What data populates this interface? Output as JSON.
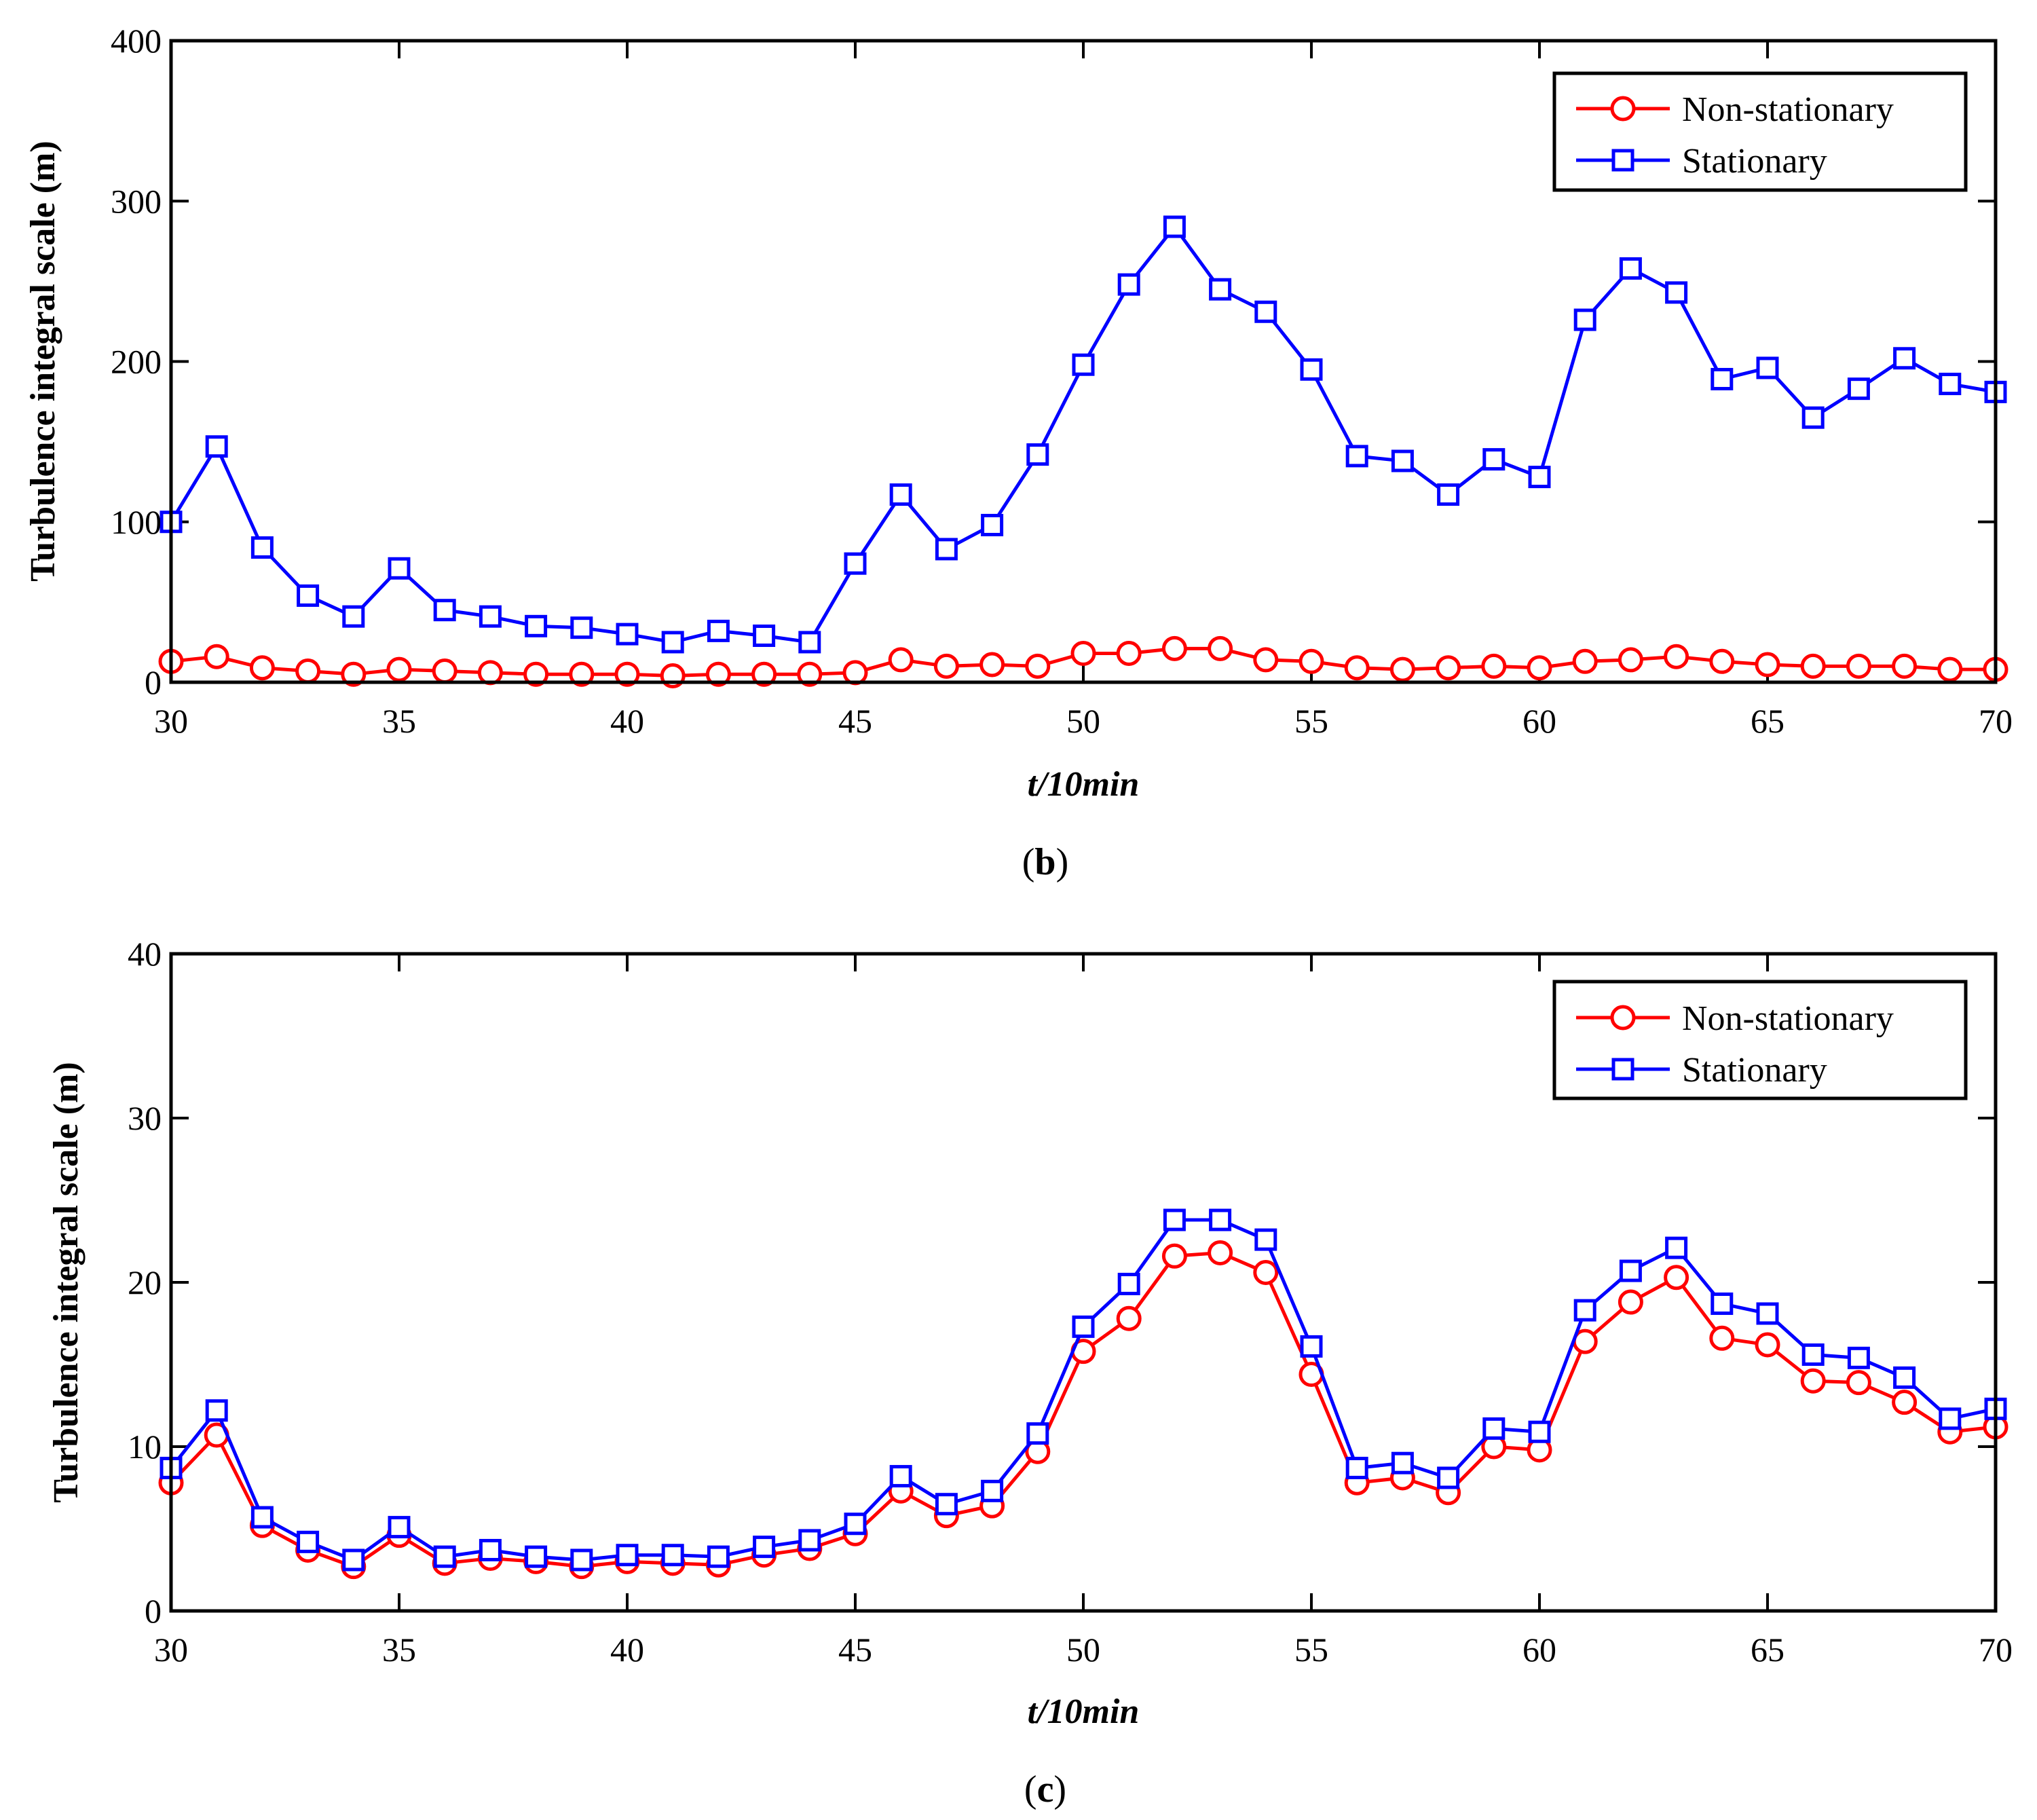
{
  "colors": {
    "non_stationary": "#ff0000",
    "stationary": "#0000ff",
    "axes": "#000000"
  },
  "chart_data": [
    {
      "type": "line",
      "caption_open": "(",
      "caption_letter": "b",
      "caption_close": ")",
      "xlabel": "t/10min",
      "ylabel": "Turbulence integral scale (m)",
      "xlim": [
        30,
        70
      ],
      "ylim": [
        0,
        400
      ],
      "xticks": [
        30,
        35,
        40,
        45,
        50,
        55,
        60,
        65,
        70
      ],
      "yticks": [
        0,
        100,
        200,
        300,
        400
      ],
      "xtick_labels": [
        "30",
        "35",
        "40",
        "45",
        "50",
        "55",
        "60",
        "65",
        "70"
      ],
      "ytick_labels": [
        "0",
        "100",
        "200",
        "300",
        "400"
      ],
      "x": [
        30,
        31,
        32,
        33,
        34,
        35,
        36,
        37,
        38,
        39,
        40,
        41,
        42,
        43,
        44,
        45,
        46,
        47,
        48,
        49,
        50,
        51,
        52,
        53,
        54,
        55,
        56,
        57,
        58,
        59,
        60,
        61,
        62,
        63,
        64,
        65,
        66,
        67,
        68,
        69,
        70
      ],
      "series": [
        {
          "name": "Non-stationary",
          "marker": "circle",
          "color": "#ff0000",
          "values": [
            13,
            16,
            9,
            7,
            5,
            8,
            7,
            6,
            5,
            5,
            5,
            4,
            5,
            5,
            5,
            6,
            14,
            10,
            11,
            10,
            18,
            18,
            21,
            21,
            14,
            13,
            9,
            8,
            9,
            10,
            9,
            13,
            14,
            16,
            13,
            11,
            10,
            10,
            10,
            8,
            8
          ]
        },
        {
          "name": "Stationary",
          "marker": "square",
          "color": "#0000ff",
          "values": [
            100,
            147,
            84,
            54,
            41,
            71,
            45,
            41,
            35,
            34,
            30,
            25,
            32,
            29,
            25,
            74,
            117,
            83,
            98,
            142,
            198,
            248,
            284,
            245,
            231,
            195,
            141,
            138,
            117,
            139,
            128,
            226,
            258,
            243,
            189,
            196,
            165,
            183,
            202,
            186,
            181
          ]
        }
      ],
      "legend": {
        "position": "top-right",
        "entries": [
          "Non-stationary",
          "Stationary"
        ]
      }
    },
    {
      "type": "line",
      "caption_open": "(",
      "caption_letter": "c",
      "caption_close": ")",
      "xlabel": "t/10min",
      "ylabel": "Turbulence integral scale (m)",
      "xlim": [
        30,
        70
      ],
      "ylim": [
        0,
        40
      ],
      "xticks": [
        30,
        35,
        40,
        45,
        50,
        55,
        60,
        65,
        70
      ],
      "yticks": [
        0,
        10,
        20,
        30,
        40
      ],
      "xtick_labels": [
        "30",
        "35",
        "40",
        "45",
        "50",
        "55",
        "60",
        "65",
        "70"
      ],
      "ytick_labels": [
        "0",
        "10",
        "20",
        "30",
        "40"
      ],
      "x": [
        30,
        31,
        32,
        33,
        34,
        35,
        36,
        37,
        38,
        39,
        40,
        41,
        42,
        43,
        44,
        45,
        46,
        47,
        48,
        49,
        50,
        51,
        52,
        53,
        54,
        55,
        56,
        57,
        58,
        59,
        60,
        61,
        62,
        63,
        64,
        65,
        66,
        67,
        68,
        69,
        70
      ],
      "series": [
        {
          "name": "Non-stationary",
          "marker": "circle",
          "color": "#ff0000",
          "values": [
            7.8,
            10.7,
            5.2,
            3.7,
            2.7,
            4.6,
            2.9,
            3.2,
            3.0,
            2.7,
            3.0,
            2.9,
            2.8,
            3.4,
            3.8,
            4.7,
            7.3,
            5.8,
            6.4,
            9.7,
            15.8,
            17.8,
            21.6,
            21.8,
            20.6,
            14.4,
            7.8,
            8.1,
            7.2,
            10.0,
            9.8,
            16.4,
            18.8,
            20.3,
            16.6,
            16.2,
            14.0,
            13.9,
            12.7,
            10.9,
            11.2
          ]
        },
        {
          "name": "Stationary",
          "marker": "square",
          "color": "#0000ff",
          "values": [
            8.7,
            12.2,
            5.7,
            4.2,
            3.1,
            5.1,
            3.3,
            3.7,
            3.3,
            3.1,
            3.4,
            3.4,
            3.3,
            3.9,
            4.3,
            5.3,
            8.2,
            6.5,
            7.3,
            10.8,
            17.3,
            19.9,
            23.8,
            23.8,
            22.6,
            16.1,
            8.7,
            9.0,
            8.1,
            11.1,
            10.9,
            18.3,
            20.7,
            22.1,
            18.7,
            18.1,
            15.6,
            15.4,
            14.2,
            11.7,
            12.3
          ]
        }
      ],
      "legend": {
        "position": "top-right",
        "entries": [
          "Non-stationary",
          "Stationary"
        ]
      }
    }
  ]
}
